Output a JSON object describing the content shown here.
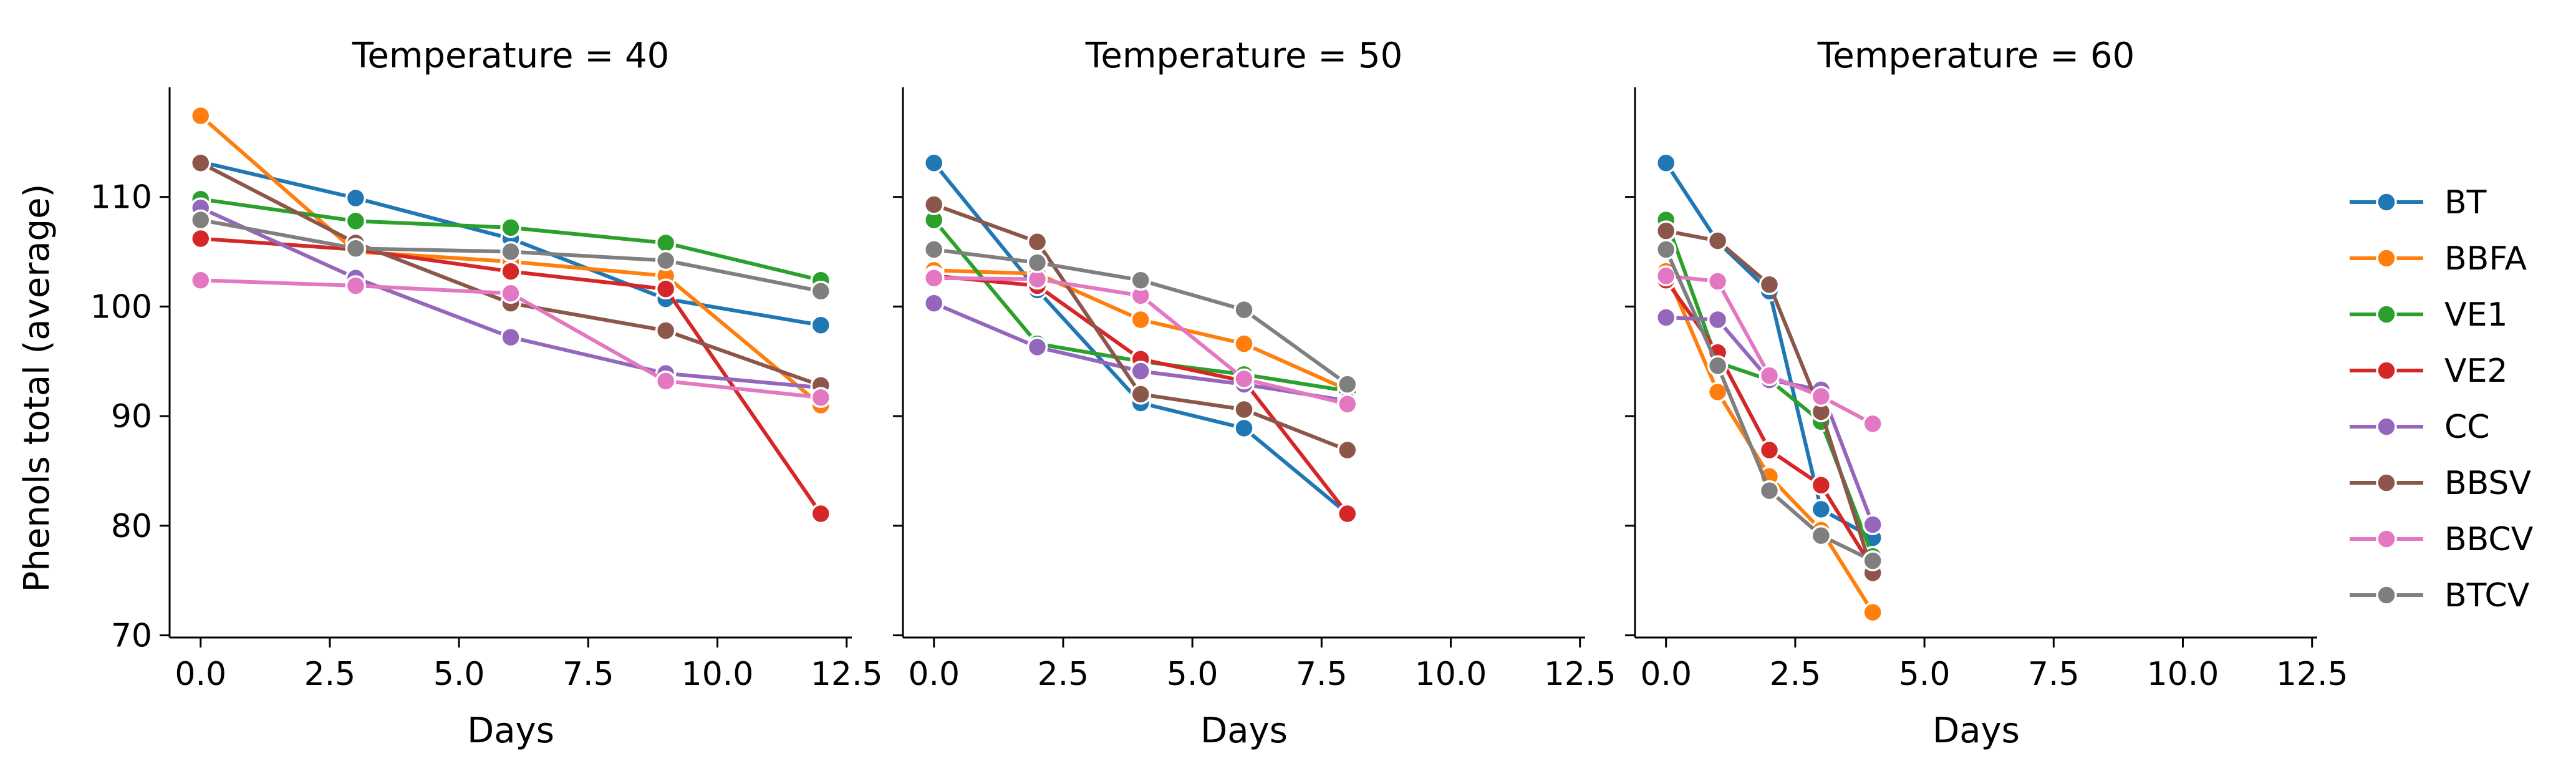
{
  "chart_data": {
    "type": "line",
    "ylabel": "Phenols total (average)",
    "xlabel": "Days",
    "xlim": [
      -0.6,
      12.6
    ],
    "ylim": [
      69.8,
      120.0
    ],
    "xticks": [
      0,
      2.5,
      5,
      7.5,
      10,
      12.5
    ],
    "xtick_labels": [
      "0.0",
      "2.5",
      "5.0",
      "7.5",
      "10.0",
      "12.5"
    ],
    "yticks": [
      70,
      80,
      90,
      100,
      110
    ],
    "ytick_labels": [
      "70",
      "80",
      "90",
      "100",
      "110"
    ],
    "legend_position": "right",
    "legend": [
      "BT",
      "BBFA",
      "VE1",
      "VE2",
      "CC",
      "BBSV",
      "BBCV",
      "BTCV"
    ],
    "colors": {
      "BT": "#1f77b4",
      "BBFA": "#ff7f0e",
      "VE1": "#2ca02c",
      "VE2": "#d62728",
      "CC": "#9467bd",
      "BBSV": "#8c564b",
      "BBCV": "#e377c2",
      "BTCV": "#7f7f7f"
    },
    "panels": [
      {
        "title": "Temperature = 40",
        "x": [
          0,
          3,
          6,
          9,
          12
        ],
        "series": [
          {
            "name": "BT",
            "values": [
              113.2,
              109.9,
              106.2,
              100.7,
              98.3
            ]
          },
          {
            "name": "BBFA",
            "values": [
              117.4,
              105.0,
              104.1,
              102.8,
              91.0
            ]
          },
          {
            "name": "VE1",
            "values": [
              109.8,
              107.8,
              107.2,
              105.8,
              102.4
            ]
          },
          {
            "name": "VE2",
            "values": [
              106.2,
              105.2,
              103.2,
              101.6,
              81.1
            ]
          },
          {
            "name": "CC",
            "values": [
              109.0,
              102.6,
              97.2,
              93.9,
              92.6
            ]
          },
          {
            "name": "BBSV",
            "values": [
              113.1,
              105.8,
              100.3,
              97.8,
              92.8
            ]
          },
          {
            "name": "BBCV",
            "values": [
              102.4,
              101.9,
              101.2,
              93.2,
              91.7
            ]
          },
          {
            "name": "BTCV",
            "values": [
              107.9,
              105.3,
              105.0,
              104.2,
              101.4
            ]
          }
        ]
      },
      {
        "title": "Temperature = 50",
        "x": [
          0,
          2,
          4,
          6,
          8
        ],
        "series": [
          {
            "name": "BT",
            "values": [
              113.1,
              101.5,
              91.2,
              88.9,
              81.1
            ]
          },
          {
            "name": "BBFA",
            "values": [
              103.3,
              103.0,
              98.8,
              96.6,
              92.4
            ]
          },
          {
            "name": "VE1",
            "values": [
              107.9,
              96.6,
              95.0,
              93.8,
              92.3
            ]
          },
          {
            "name": "VE2",
            "values": [
              102.8,
              101.9,
              95.2,
              93.2,
              81.1
            ]
          },
          {
            "name": "CC",
            "values": [
              100.3,
              96.3,
              94.1,
              92.9,
              91.4
            ]
          },
          {
            "name": "BBSV",
            "values": [
              109.3,
              105.9,
              92.0,
              90.6,
              86.9
            ]
          },
          {
            "name": "BBCV",
            "values": [
              102.6,
              102.5,
              101.0,
              93.4,
              91.1
            ]
          },
          {
            "name": "BTCV",
            "values": [
              105.2,
              104.0,
              102.4,
              99.7,
              92.9
            ]
          }
        ]
      },
      {
        "title": "Temperature = 60",
        "x": [
          0,
          1,
          2,
          3,
          4
        ],
        "series": [
          {
            "name": "BT",
            "values": [
              113.1,
              105.9,
              101.4,
              81.5,
              78.9
            ]
          },
          {
            "name": "BBFA",
            "values": [
              103.2,
              92.2,
              84.5,
              79.6,
              72.1
            ]
          },
          {
            "name": "VE1",
            "values": [
              107.9,
              94.9,
              93.3,
              89.5,
              77.2
            ]
          },
          {
            "name": "VE2",
            "values": [
              102.4,
              95.8,
              86.9,
              83.7,
              76.1
            ]
          },
          {
            "name": "CC",
            "values": [
              99.0,
              98.8,
              93.3,
              92.4,
              80.1
            ]
          },
          {
            "name": "BBSV",
            "values": [
              106.9,
              106.0,
              102.0,
              90.4,
              75.7
            ]
          },
          {
            "name": "BBCV",
            "values": [
              102.8,
              102.3,
              93.7,
              91.8,
              89.3
            ]
          },
          {
            "name": "BTCV",
            "values": [
              105.2,
              94.6,
              83.2,
              79.1,
              76.8
            ]
          }
        ]
      }
    ]
  }
}
